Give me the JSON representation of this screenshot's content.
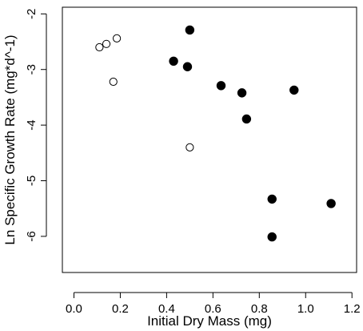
{
  "chart_data": {
    "type": "scatter",
    "title": "",
    "xlabel": "Initial Dry Mass (mg)",
    "ylabel": "Ln Specific Growth Rate (mg*d^-1)",
    "xlim": [
      -0.05,
      1.22
    ],
    "ylim": [
      -6.65,
      -1.88
    ],
    "x_ticks": [
      0.0,
      0.2,
      0.4,
      0.6,
      0.8,
      1.0,
      1.2
    ],
    "x_tick_labels": [
      "0.0",
      "0.2",
      "0.4",
      "0.6",
      "0.8",
      "1.0",
      "1.2"
    ],
    "y_ticks": [
      -6,
      -5,
      -4,
      -3,
      -2
    ],
    "y_tick_labels": [
      "-6",
      "-5",
      "-4",
      "-3",
      "-2"
    ],
    "grid": false,
    "legend": "none",
    "series": [
      {
        "marker": "open-circle",
        "color": "#000000",
        "x": [
          0.11,
          0.14,
          0.185,
          0.17,
          0.5
        ],
        "y": [
          -2.6,
          -2.54,
          -2.44,
          -3.22,
          -4.4
        ]
      },
      {
        "marker": "filled-circle",
        "color": "#000000",
        "x": [
          0.5,
          0.43,
          0.49,
          0.635,
          0.725,
          0.745,
          0.95,
          0.855,
          0.855,
          1.11
        ],
        "y": [
          -2.29,
          -2.85,
          -2.95,
          -3.29,
          -3.42,
          -3.89,
          -3.37,
          -5.33,
          -6.01,
          -5.41
        ]
      }
    ]
  }
}
